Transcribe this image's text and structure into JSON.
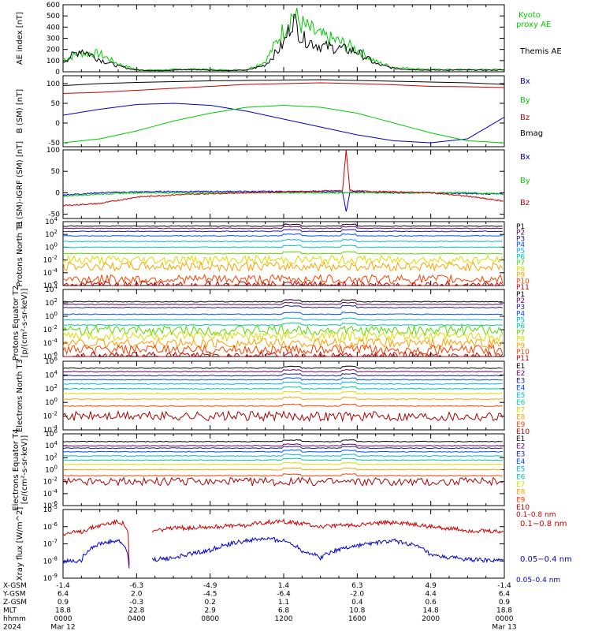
{
  "chart_data": [
    {
      "type": "line",
      "panel": "ae",
      "ylabel": "AE index [nT]",
      "ylim": [
        0,
        600
      ],
      "yticks": [
        0,
        100,
        200,
        300,
        400,
        500,
        600
      ],
      "ytick_labels": [
        "0",
        "100",
        "200",
        "300",
        "400",
        "500",
        "600"
      ],
      "x": [
        "00:00",
        "01:00",
        "02:00",
        "03:00",
        "04:00",
        "05:00",
        "06:00",
        "07:00",
        "08:00",
        "09:00",
        "10:00",
        "11:00",
        "12:00",
        "12:30",
        "13:00",
        "14:00",
        "15:00",
        "16:00",
        "17:00",
        "18:00",
        "19:00",
        "20:00",
        "21:00",
        "22:00",
        "23:00",
        "24:00"
      ],
      "series": [
        {
          "name": "Kyoto proxy AE",
          "color": "#00cc00",
          "values": [
            110,
            170,
            160,
            70,
            20,
            15,
            20,
            25,
            20,
            15,
            20,
            90,
            380,
            520,
            420,
            320,
            270,
            200,
            90,
            40,
            30,
            20,
            20,
            20,
            20,
            20
          ]
        },
        {
          "name": "Themis AE",
          "color": "#000000",
          "values": [
            90,
            200,
            110,
            50,
            15,
            10,
            15,
            20,
            15,
            10,
            15,
            60,
            250,
            480,
            300,
            230,
            210,
            180,
            70,
            30,
            20,
            15,
            15,
            15,
            15,
            15
          ]
        }
      ]
    },
    {
      "type": "line",
      "panel": "bfield",
      "ylabel": "B (SM) [nT]",
      "ylim": [
        -60,
        120
      ],
      "yticks": [
        -50,
        0,
        50,
        100
      ],
      "ytick_labels": [
        "-50",
        "0",
        "50",
        "100"
      ],
      "x_hours": [
        0,
        2,
        4,
        6,
        8,
        10,
        12,
        14,
        16,
        18,
        20,
        22,
        24
      ],
      "series": [
        {
          "name": "Bx",
          "color": "#0000cc",
          "values": [
            20,
            35,
            47,
            50,
            45,
            30,
            10,
            -10,
            -30,
            -45,
            -50,
            -40,
            15
          ]
        },
        {
          "name": "By",
          "color": "#00cc00",
          "values": [
            -50,
            -40,
            -20,
            5,
            25,
            40,
            45,
            40,
            25,
            0,
            -25,
            -45,
            -50
          ]
        },
        {
          "name": "Bz",
          "color": "#cc0000",
          "values": [
            75,
            78,
            83,
            88,
            93,
            98,
            100,
            102,
            100,
            97,
            93,
            92,
            90
          ]
        },
        {
          "name": "Bmag",
          "color": "#000000",
          "values": [
            95,
            100,
            103,
            105,
            107,
            108,
            109,
            110,
            108,
            106,
            104,
            102,
            98
          ]
        }
      ]
    },
    {
      "type": "line",
      "panel": "bdiff",
      "ylabel": "B (SM)-IGRF (SM) [nT]",
      "ylim": [
        -60,
        100
      ],
      "yticks": [
        -50,
        0,
        50,
        100
      ],
      "ytick_labels": [
        "-50",
        "0",
        "50",
        "100"
      ],
      "x_hours": [
        0,
        2,
        4,
        6,
        8,
        10,
        12,
        14,
        15.2,
        15.4,
        15.6,
        16,
        18,
        20,
        22,
        24
      ],
      "series": [
        {
          "name": "Bx",
          "color": "#0000cc",
          "values": [
            -5,
            0,
            2,
            3,
            3,
            3,
            3,
            2,
            3,
            -45,
            2,
            2,
            0,
            0,
            -2,
            -3
          ]
        },
        {
          "name": "By",
          "color": "#00cc00",
          "values": [
            -8,
            -3,
            0,
            0,
            0,
            0,
            0,
            0,
            0,
            0,
            0,
            0,
            0,
            0,
            0,
            -3
          ]
        },
        {
          "name": "Bz",
          "color": "#cc0000",
          "values": [
            -30,
            -25,
            -10,
            -5,
            -2,
            0,
            2,
            4,
            5,
            100,
            6,
            4,
            2,
            0,
            -8,
            -20
          ]
        }
      ]
    },
    {
      "type": "line",
      "panel": "protons_north",
      "ylabel": "Protons North T1",
      "yscale": "log",
      "ylim": [
        1e-06,
        10000
      ],
      "ytick_labels": [
        "10^-6",
        "10^-4",
        "10^-2",
        "10^0",
        "10^2",
        "10^4"
      ],
      "series": [
        {
          "name": "P1",
          "color": "#000000",
          "level": 2000
        },
        {
          "name": "P2",
          "color": "#6a006a",
          "level": 900
        },
        {
          "name": "P3",
          "color": "#1a1aa0",
          "level": 300
        },
        {
          "name": "P4",
          "color": "#0050ff",
          "level": 60
        },
        {
          "name": "P5",
          "color": "#00b4e6",
          "level": 8
        },
        {
          "name": "P6",
          "color": "#00c8a0",
          "level": 1
        },
        {
          "name": "P7",
          "color": "#50dc00",
          "level": 0.1
        },
        {
          "name": "P8",
          "color": "#dcdc00",
          "level": 0.01
        },
        {
          "name": "P9",
          "color": "#ffa000",
          "level": 0.001
        },
        {
          "name": "P10",
          "color": "#ff4000",
          "level": 1e-05
        },
        {
          "name": "P11",
          "color": "#cc0000",
          "level": 1e-06
        }
      ]
    },
    {
      "type": "line",
      "panel": "protons_equator",
      "ylabel": "Protons Equator T2 [p/(cm²-s-sr-keV)]",
      "yscale": "log",
      "ylim": [
        1e-06,
        10000
      ],
      "ytick_labels": [
        "10^-6",
        "10^-4",
        "10^-2",
        "10^0",
        "10^2",
        "10^4"
      ],
      "series": [
        {
          "name": "P1",
          "color": "#000000",
          "level": 150
        },
        {
          "name": "P2",
          "color": "#6a006a",
          "level": 60
        },
        {
          "name": "P3",
          "color": "#1a1aa0",
          "level": 20
        },
        {
          "name": "P4",
          "color": "#0050ff",
          "level": 2
        },
        {
          "name": "P5",
          "color": "#00b4e6",
          "level": 0.3
        },
        {
          "name": "P6",
          "color": "#00c8a0",
          "level": 0.05
        },
        {
          "name": "P7",
          "color": "#50dc00",
          "level": 0.008
        },
        {
          "name": "P8",
          "color": "#dcdc00",
          "level": 0.001
        },
        {
          "name": "P9",
          "color": "#ffa000",
          "level": 0.0001
        },
        {
          "name": "P10",
          "color": "#ff4000",
          "level": 1e-05
        },
        {
          "name": "P11",
          "color": "#cc0000",
          "level": 1e-06
        }
      ]
    },
    {
      "type": "line",
      "panel": "electrons_north",
      "ylabel": "Electrons North T3",
      "yscale": "log",
      "ylim": [
        0.0001,
        1000000.0
      ],
      "ytick_labels": [
        "10^-4",
        "10^-2",
        "10^0",
        "10^2",
        "10^4",
        "10^6"
      ],
      "series": [
        {
          "name": "E1",
          "color": "#000000",
          "level": 100000
        },
        {
          "name": "E2",
          "color": "#6a006a",
          "level": 30000
        },
        {
          "name": "E3",
          "color": "#1a1aa0",
          "level": 8000
        },
        {
          "name": "E4",
          "color": "#0050ff",
          "level": 2000
        },
        {
          "name": "E5",
          "color": "#00b4e6",
          "level": 500
        },
        {
          "name": "E6",
          "color": "#00c8a0",
          "level": 100
        },
        {
          "name": "E7",
          "color": "#dcdc00",
          "level": 20
        },
        {
          "name": "E8",
          "color": "#ffa000",
          "level": 3
        },
        {
          "name": "E9",
          "color": "#ff4000",
          "level": 0.3
        },
        {
          "name": "E10",
          "color": "#aa0000",
          "level": 0.01
        }
      ]
    },
    {
      "type": "line",
      "panel": "electrons_equator",
      "ylabel": "Electrons Equator T4 [e/(cm²-s-sr-keV)]",
      "yscale": "log",
      "ylim": [
        1e-06,
        1000000.0
      ],
      "ytick_labels": [
        "10^-6",
        "10^-4",
        "10^-2",
        "10^0",
        "10^2",
        "10^4",
        "10^6"
      ],
      "series": [
        {
          "name": "E1",
          "color": "#000000",
          "level": 50000
        },
        {
          "name": "E2",
          "color": "#6a006a",
          "level": 10000
        },
        {
          "name": "E3",
          "color": "#1a1aa0",
          "level": 4000
        },
        {
          "name": "E4",
          "color": "#0050ff",
          "level": 1000
        },
        {
          "name": "E5",
          "color": "#00b4e6",
          "level": 200
        },
        {
          "name": "E6",
          "color": "#00c8a0",
          "level": 40
        },
        {
          "name": "E7",
          "color": "#dcdc00",
          "level": 8
        },
        {
          "name": "E8",
          "color": "#ffa000",
          "level": 1
        },
        {
          "name": "E9",
          "color": "#ff4000",
          "level": 0.1
        },
        {
          "name": "E10",
          "color": "#aa0000",
          "level": 0.01
        }
      ]
    },
    {
      "type": "line",
      "panel": "xray",
      "ylabel": "Xray flux [W/m^2]",
      "yscale": "log",
      "ylim": [
        1e-09,
        1e-05
      ],
      "ytick_labels": [
        "10^-9",
        "10^-8",
        "10^-7",
        "10^-6",
        "10^-5"
      ],
      "x_hours": [
        0,
        1,
        2,
        3,
        3.3,
        3.6,
        4.2,
        4.8,
        5,
        6,
        8,
        10,
        11,
        12,
        13,
        14,
        16,
        18,
        20,
        22,
        24
      ],
      "series": [
        {
          "name": "0.1–0.8 nm",
          "color": "#cc0000",
          "values": [
            4e-07,
            5e-07,
            1.2e-06,
            2e-06,
            1.5e-06,
            5e-09,
            null,
            4e-07,
            6e-07,
            8e-07,
            1e-06,
            1.2e-06,
            1.8e-06,
            2e-06,
            1.5e-06,
            1e-06,
            1.3e-06,
            1.8e-06,
            1e-06,
            6e-07,
            5e-07
          ]
        },
        {
          "name": "0.05–0.4 nm",
          "color": "#0000cc",
          "values": [
            1e-08,
            1e-08,
            1e-07,
            1.5e-07,
            8e-08,
            3e-09,
            null,
            1.2e-08,
            1.2e-08,
            1.5e-08,
            4e-08,
            1.5e-07,
            2e-07,
            1.5e-07,
            4e-08,
            1.5e-08,
            8e-08,
            1.5e-07,
            2e-08,
            1.2e-08,
            1e-08
          ]
        }
      ]
    }
  ],
  "axis_footer": {
    "row_labels": [
      "X-GSM",
      "Y-GSM",
      "Z-GSM",
      "MLT",
      "hhmm",
      "2024"
    ],
    "columns": [
      [
        "-1.4",
        "6.4",
        "0.9",
        "18.8",
        "0000",
        "Mar 12"
      ],
      [
        "-6.3",
        "2.0",
        "-0.3",
        "22.8",
        "0400",
        ""
      ],
      [
        "-4.9",
        "-4.5",
        "0.2",
        "2.9",
        "0800",
        ""
      ],
      [
        "1.4",
        "-6.4",
        "1.1",
        "6.8",
        "1200",
        ""
      ],
      [
        "6.3",
        "-2.0",
        "0.4",
        "10.8",
        "1600",
        ""
      ],
      [
        "4.9",
        "4.4",
        "0.6",
        "14.8",
        "2000",
        ""
      ],
      [
        "-1.4",
        "6.4",
        "0.9",
        "18.8",
        "0000",
        "Mar 13"
      ]
    ]
  },
  "legends": {
    "ae": [
      "Kyoto",
      "proxy AE",
      "Themis AE"
    ],
    "bfield": [
      "Bx",
      "By",
      "Bz",
      "Bmag"
    ],
    "bdiff": [
      "Bx",
      "By",
      "Bz"
    ],
    "xray": [
      "0.1−0.8 nm",
      "0.05−0.4 nm"
    ]
  }
}
